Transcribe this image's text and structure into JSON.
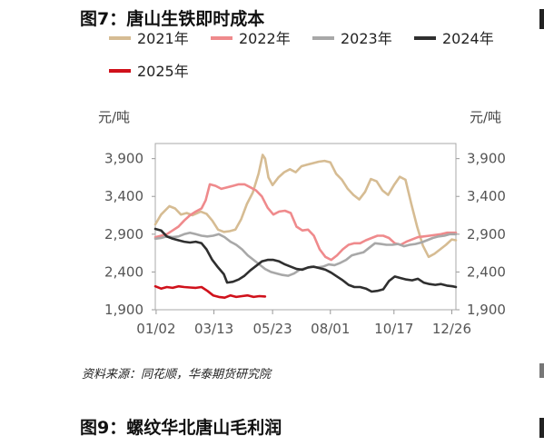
{
  "figure": {
    "title": "图7：唐山生铁即时成本",
    "next_title": "图9：螺纹华北唐山毛利润",
    "source": "资料来源：同花顺，华泰期货研究院"
  },
  "chart_data": {
    "type": "line",
    "title": "",
    "y_unit_left": "元/吨",
    "y_unit_right": "元/吨",
    "ylim": [
      1900,
      4100
    ],
    "yticks": [
      1900,
      2400,
      2900,
      3400,
      3900
    ],
    "ytick_labels": [
      "1,900",
      "2,400",
      "2,900",
      "3,400",
      "3,900"
    ],
    "x_tick_labels": [
      "01/02",
      "03/13",
      "05/23",
      "08/01",
      "10/17",
      "12/26"
    ],
    "x_domain": [
      "01/01",
      "12/31"
    ],
    "grid": false,
    "legend_position": "top",
    "series": [
      {
        "name": "2021年",
        "color": "#d6bc93",
        "points": [
          [
            "01/01",
            3030
          ],
          [
            "01/08",
            3160
          ],
          [
            "01/18",
            3270
          ],
          [
            "01/25",
            3240
          ],
          [
            "02/01",
            3160
          ],
          [
            "02/08",
            3180
          ],
          [
            "02/15",
            3150
          ],
          [
            "02/25",
            3200
          ],
          [
            "03/04",
            3170
          ],
          [
            "03/11",
            3080
          ],
          [
            "03/18",
            2960
          ],
          [
            "03/25",
            2930
          ],
          [
            "04/01",
            2940
          ],
          [
            "04/08",
            2960
          ],
          [
            "04/15",
            3100
          ],
          [
            "04/22",
            3300
          ],
          [
            "04/29",
            3450
          ],
          [
            "05/06",
            3700
          ],
          [
            "05/11",
            3950
          ],
          [
            "05/14",
            3900
          ],
          [
            "05/18",
            3650
          ],
          [
            "05/23",
            3550
          ],
          [
            "05/30",
            3650
          ],
          [
            "06/06",
            3720
          ],
          [
            "06/13",
            3760
          ],
          [
            "06/20",
            3720
          ],
          [
            "06/27",
            3800
          ],
          [
            "07/04",
            3820
          ],
          [
            "07/11",
            3840
          ],
          [
            "07/18",
            3860
          ],
          [
            "07/25",
            3870
          ],
          [
            "08/01",
            3850
          ],
          [
            "08/08",
            3700
          ],
          [
            "08/15",
            3620
          ],
          [
            "08/22",
            3500
          ],
          [
            "08/29",
            3420
          ],
          [
            "09/05",
            3360
          ],
          [
            "09/12",
            3460
          ],
          [
            "09/19",
            3630
          ],
          [
            "09/26",
            3600
          ],
          [
            "10/03",
            3480
          ],
          [
            "10/10",
            3420
          ],
          [
            "10/17",
            3550
          ],
          [
            "10/24",
            3660
          ],
          [
            "10/31",
            3620
          ],
          [
            "11/07",
            3300
          ],
          [
            "11/14",
            3000
          ],
          [
            "11/21",
            2750
          ],
          [
            "11/28",
            2600
          ],
          [
            "12/05",
            2640
          ],
          [
            "12/12",
            2700
          ],
          [
            "12/19",
            2760
          ],
          [
            "12/26",
            2830
          ],
          [
            "12/31",
            2820
          ]
        ]
      },
      {
        "name": "2022年",
        "color": "#ef8a8c",
        "points": [
          [
            "01/01",
            2860
          ],
          [
            "01/08",
            2880
          ],
          [
            "01/15",
            2900
          ],
          [
            "01/22",
            2950
          ],
          [
            "01/29",
            3000
          ],
          [
            "02/05",
            3080
          ],
          [
            "02/12",
            3150
          ],
          [
            "02/19",
            3200
          ],
          [
            "02/26",
            3240
          ],
          [
            "03/03",
            3350
          ],
          [
            "03/08",
            3560
          ],
          [
            "03/15",
            3540
          ],
          [
            "03/22",
            3500
          ],
          [
            "03/29",
            3520
          ],
          [
            "04/05",
            3540
          ],
          [
            "04/12",
            3560
          ],
          [
            "04/19",
            3560
          ],
          [
            "04/26",
            3520
          ],
          [
            "05/03",
            3480
          ],
          [
            "05/10",
            3400
          ],
          [
            "05/17",
            3250
          ],
          [
            "05/24",
            3160
          ],
          [
            "05/31",
            3200
          ],
          [
            "06/07",
            3210
          ],
          [
            "06/14",
            3180
          ],
          [
            "06/21",
            3000
          ],
          [
            "06/28",
            2950
          ],
          [
            "07/05",
            2960
          ],
          [
            "07/12",
            2880
          ],
          [
            "07/19",
            2700
          ],
          [
            "07/26",
            2600
          ],
          [
            "08/02",
            2560
          ],
          [
            "08/09",
            2620
          ],
          [
            "08/16",
            2700
          ],
          [
            "08/23",
            2760
          ],
          [
            "08/30",
            2780
          ],
          [
            "09/06",
            2780
          ],
          [
            "09/13",
            2820
          ],
          [
            "09/20",
            2850
          ],
          [
            "09/27",
            2880
          ],
          [
            "10/04",
            2880
          ],
          [
            "10/11",
            2850
          ],
          [
            "10/18",
            2780
          ],
          [
            "10/25",
            2760
          ],
          [
            "11/01",
            2800
          ],
          [
            "11/08",
            2830
          ],
          [
            "11/15",
            2860
          ],
          [
            "11/22",
            2870
          ],
          [
            "11/29",
            2880
          ],
          [
            "12/06",
            2890
          ],
          [
            "12/13",
            2900
          ],
          [
            "12/20",
            2920
          ],
          [
            "12/31",
            2920
          ]
        ]
      },
      {
        "name": "2023年",
        "color": "#a8a8a8",
        "points": [
          [
            "01/01",
            2840
          ],
          [
            "01/08",
            2850
          ],
          [
            "01/15",
            2870
          ],
          [
            "01/22",
            2860
          ],
          [
            "01/29",
            2870
          ],
          [
            "02/05",
            2900
          ],
          [
            "02/12",
            2920
          ],
          [
            "02/19",
            2900
          ],
          [
            "02/26",
            2880
          ],
          [
            "03/05",
            2870
          ],
          [
            "03/12",
            2880
          ],
          [
            "03/19",
            2900
          ],
          [
            "03/26",
            2860
          ],
          [
            "04/02",
            2800
          ],
          [
            "04/09",
            2760
          ],
          [
            "04/16",
            2700
          ],
          [
            "04/23",
            2620
          ],
          [
            "04/30",
            2560
          ],
          [
            "05/07",
            2500
          ],
          [
            "05/14",
            2440
          ],
          [
            "05/21",
            2400
          ],
          [
            "05/28",
            2380
          ],
          [
            "06/04",
            2360
          ],
          [
            "06/11",
            2350
          ],
          [
            "06/18",
            2380
          ],
          [
            "06/25",
            2430
          ],
          [
            "07/02",
            2450
          ],
          [
            "07/09",
            2470
          ],
          [
            "07/16",
            2460
          ],
          [
            "07/23",
            2470
          ],
          [
            "07/30",
            2500
          ],
          [
            "08/06",
            2490
          ],
          [
            "08/13",
            2520
          ],
          [
            "08/20",
            2560
          ],
          [
            "08/27",
            2620
          ],
          [
            "09/03",
            2640
          ],
          [
            "09/10",
            2660
          ],
          [
            "09/17",
            2720
          ],
          [
            "09/24",
            2780
          ],
          [
            "10/01",
            2770
          ],
          [
            "10/08",
            2760
          ],
          [
            "10/15",
            2760
          ],
          [
            "10/22",
            2770
          ],
          [
            "10/29",
            2740
          ],
          [
            "11/05",
            2760
          ],
          [
            "11/12",
            2770
          ],
          [
            "11/19",
            2790
          ],
          [
            "11/26",
            2820
          ],
          [
            "12/03",
            2850
          ],
          [
            "12/10",
            2870
          ],
          [
            "12/17",
            2880
          ],
          [
            "12/24",
            2900
          ],
          [
            "12/31",
            2900
          ]
        ]
      },
      {
        "name": "2024年",
        "color": "#2f2f2f",
        "points": [
          [
            "01/01",
            2970
          ],
          [
            "01/08",
            2950
          ],
          [
            "01/15",
            2870
          ],
          [
            "01/22",
            2840
          ],
          [
            "01/29",
            2820
          ],
          [
            "02/05",
            2800
          ],
          [
            "02/12",
            2790
          ],
          [
            "02/19",
            2800
          ],
          [
            "02/26",
            2780
          ],
          [
            "03/04",
            2700
          ],
          [
            "03/11",
            2560
          ],
          [
            "03/18",
            2460
          ],
          [
            "03/25",
            2370
          ],
          [
            "03/29",
            2260
          ],
          [
            "04/05",
            2270
          ],
          [
            "04/12",
            2300
          ],
          [
            "04/19",
            2350
          ],
          [
            "04/26",
            2420
          ],
          [
            "05/03",
            2480
          ],
          [
            "05/10",
            2540
          ],
          [
            "05/17",
            2560
          ],
          [
            "05/24",
            2560
          ],
          [
            "05/31",
            2540
          ],
          [
            "06/07",
            2500
          ],
          [
            "06/14",
            2470
          ],
          [
            "06/21",
            2440
          ],
          [
            "06/28",
            2430
          ],
          [
            "07/05",
            2460
          ],
          [
            "07/12",
            2470
          ],
          [
            "07/19",
            2450
          ],
          [
            "07/26",
            2430
          ],
          [
            "08/02",
            2390
          ],
          [
            "08/09",
            2340
          ],
          [
            "08/16",
            2290
          ],
          [
            "08/23",
            2230
          ],
          [
            "08/30",
            2200
          ],
          [
            "09/06",
            2200
          ],
          [
            "09/13",
            2180
          ],
          [
            "09/20",
            2140
          ],
          [
            "09/27",
            2150
          ],
          [
            "10/04",
            2170
          ],
          [
            "10/11",
            2280
          ],
          [
            "10/18",
            2340
          ],
          [
            "10/25",
            2320
          ],
          [
            "11/01",
            2300
          ],
          [
            "11/08",
            2290
          ],
          [
            "11/15",
            2310
          ],
          [
            "11/22",
            2260
          ],
          [
            "11/29",
            2240
          ],
          [
            "12/06",
            2230
          ],
          [
            "12/13",
            2240
          ],
          [
            "12/20",
            2220
          ],
          [
            "12/27",
            2210
          ],
          [
            "12/31",
            2200
          ]
        ]
      },
      {
        "name": "2025年",
        "color": "#d0111b",
        "points": [
          [
            "01/01",
            2210
          ],
          [
            "01/08",
            2180
          ],
          [
            "01/15",
            2200
          ],
          [
            "01/22",
            2190
          ],
          [
            "01/29",
            2210
          ],
          [
            "02/05",
            2200
          ],
          [
            "02/12",
            2195
          ],
          [
            "02/19",
            2190
          ],
          [
            "02/26",
            2200
          ],
          [
            "03/05",
            2150
          ],
          [
            "03/12",
            2090
          ],
          [
            "03/19",
            2070
          ],
          [
            "03/26",
            2060
          ],
          [
            "04/02",
            2090
          ],
          [
            "04/09",
            2070
          ],
          [
            "04/16",
            2080
          ],
          [
            "04/23",
            2090
          ],
          [
            "04/30",
            2070
          ],
          [
            "05/07",
            2080
          ],
          [
            "05/14",
            2075
          ]
        ]
      }
    ]
  }
}
